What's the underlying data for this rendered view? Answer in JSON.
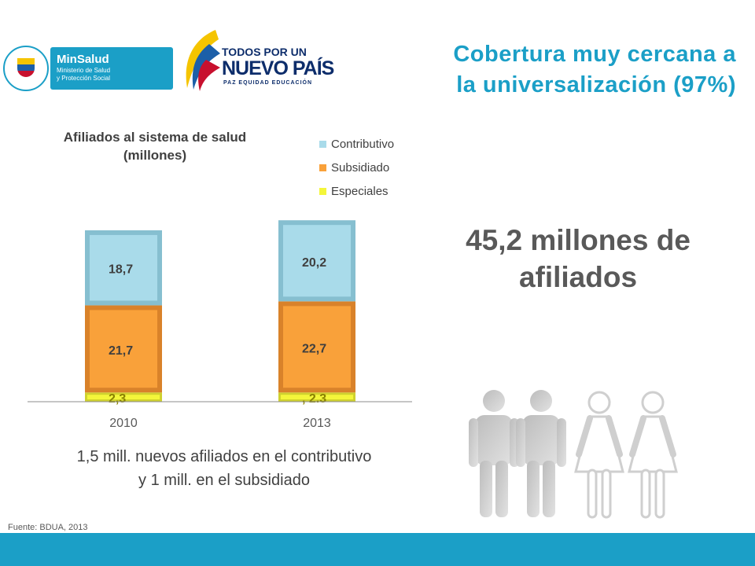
{
  "header": {
    "title_line1": "Cobertura muy cercana a",
    "title_line2": "la universalización (97%)",
    "minsalud_logo": {
      "brand": "MinSalud",
      "subtitle_line1": "Ministerio de Salud",
      "subtitle_line2": "y Protección Social"
    },
    "government_logo": {
      "line1": "TODOS POR UN",
      "line2": "NUEVO PAÍS",
      "line3": "PAZ  EQUIDAD  EDUCACIÓN"
    }
  },
  "big_stat": {
    "line1": "45,2 millones de",
    "line2": "afiliados"
  },
  "note": {
    "line1": "1,5 mill. nuevos afiliados en el contributivo",
    "line2": "y  1 mill. en el subsidiado"
  },
  "source": "Fuente: BDUA, 2013",
  "colors": {
    "accent": "#1b9fc7",
    "contributivo": "#a9dbea",
    "subsidiado": "#f9a13a",
    "especiales": "#f4f63a"
  },
  "chart_data": {
    "type": "bar",
    "stacked": true,
    "title_line1": "Afiliados al sistema de salud",
    "title_line2": "(millones)",
    "categories": [
      "2010",
      "2013"
    ],
    "series": [
      {
        "name": "Especiales",
        "values": [
          2.3,
          2.3
        ],
        "labels": [
          "2,3",
          ", 2.3"
        ],
        "color": "#f4f63a"
      },
      {
        "name": "Subsidiado",
        "values": [
          21.7,
          22.7
        ],
        "labels": [
          "21,7",
          "22,7"
        ],
        "color": "#f9a13a"
      },
      {
        "name": "Contributivo",
        "values": [
          18.7,
          20.2
        ],
        "labels": [
          "18,7",
          "20,2"
        ],
        "color": "#a9dbea"
      }
    ],
    "legend_order": [
      "Contributivo",
      "Subsidiado",
      "Especiales"
    ],
    "legend_position": "top-right",
    "ylim": [
      0,
      47
    ],
    "grid": false
  }
}
